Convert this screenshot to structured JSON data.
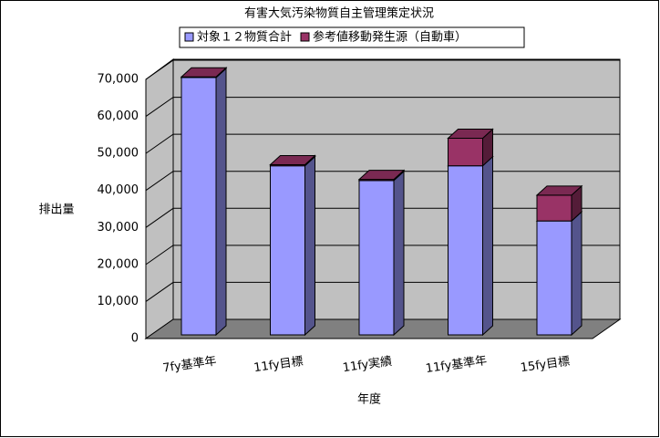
{
  "chart_data": {
    "type": "bar",
    "stacked": true,
    "three_d": true,
    "title": "有害大気汚染物質自主管理策定状況",
    "x_label": "年度",
    "y_label": "排出量",
    "categories": [
      "7fy基準年",
      "11fy目標",
      "11fy実績",
      "11fy基準年",
      "15fy目標"
    ],
    "series": [
      {
        "name": "対象１２物質合計",
        "color": "#9999ff",
        "values": [
          70000,
          46000,
          42000,
          46000,
          31000
        ]
      },
      {
        "name": "参考値移動発生源（自動車）",
        "color": "#993366",
        "values": [
          200,
          300,
          300,
          7500,
          7000
        ]
      }
    ],
    "ylim": [
      0,
      70000
    ],
    "yticks": [
      0,
      {
        "value": 10000,
        "label": "10,000"
      },
      {
        "value": 20000,
        "label": "20,000"
      },
      {
        "value": 30000,
        "label": "30,000"
      },
      {
        "value": 40000,
        "label": "40,000"
      },
      {
        "value": 50000,
        "label": "50,000"
      },
      {
        "value": 60000,
        "label": "60,000"
      },
      {
        "value": 70000,
        "label": "70,000"
      }
    ],
    "grid": true,
    "legend": "top"
  }
}
